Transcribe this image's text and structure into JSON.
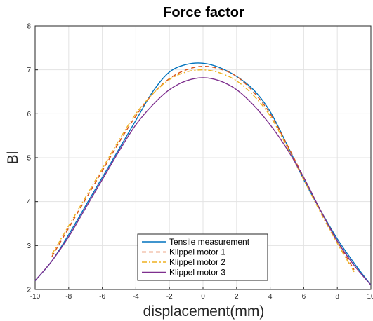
{
  "chart_data": {
    "type": "line",
    "title": "Force factor",
    "xlabel": "displacement(mm)",
    "ylabel": "Bl",
    "xlim": [
      -10,
      10
    ],
    "ylim": [
      2,
      8
    ],
    "xticks": [
      -10,
      -8,
      -6,
      -4,
      -2,
      0,
      2,
      4,
      6,
      8,
      10
    ],
    "yticks": [
      2,
      3,
      4,
      5,
      6,
      7,
      8
    ],
    "grid": true,
    "legend_position": "bottom-center",
    "series": [
      {
        "name": "Tensile measurement",
        "color": "#0072BD",
        "dash": "solid",
        "x": [
          -10,
          -9,
          -8,
          -7,
          -6,
          -5,
          -4,
          -3,
          -2,
          -1,
          0,
          1,
          2,
          3,
          4,
          5,
          6,
          7,
          8,
          9,
          10
        ],
        "y": [
          2.2,
          2.65,
          3.25,
          3.9,
          4.55,
          5.2,
          5.85,
          6.5,
          6.95,
          7.12,
          7.15,
          7.05,
          6.85,
          6.55,
          6.05,
          5.3,
          4.5,
          3.8,
          3.15,
          2.6,
          2.1
        ]
      },
      {
        "name": "Klippel motor 1",
        "color": "#D95319",
        "dash": "dashed",
        "x": [
          -9,
          -8,
          -7,
          -6,
          -5,
          -4,
          -3,
          -2,
          -1,
          0,
          1,
          2,
          3,
          4,
          5,
          6,
          7,
          8,
          9
        ],
        "y": [
          2.75,
          3.4,
          4.05,
          4.7,
          5.35,
          5.95,
          6.45,
          6.8,
          7.0,
          7.08,
          7.02,
          6.85,
          6.5,
          6.0,
          5.3,
          4.55,
          3.8,
          3.1,
          2.45
        ]
      },
      {
        "name": "Klippel motor 2",
        "color": "#EDB120",
        "dash": "dashdot",
        "x": [
          -9,
          -8,
          -7,
          -6,
          -5,
          -4,
          -3,
          -2,
          -1,
          0,
          1,
          2,
          3,
          4,
          5,
          6,
          7,
          8,
          9
        ],
        "y": [
          2.8,
          3.45,
          4.1,
          4.75,
          5.4,
          6.0,
          6.45,
          6.78,
          6.95,
          7.0,
          6.93,
          6.75,
          6.42,
          5.95,
          5.25,
          4.5,
          3.75,
          3.05,
          2.4
        ]
      },
      {
        "name": "Klippel motor 3",
        "color": "#7E2F8E",
        "dash": "solid",
        "x": [
          -10,
          -9,
          -8,
          -7,
          -6,
          -5,
          -4,
          -3,
          -2,
          -1,
          0,
          1,
          2,
          3,
          4,
          5,
          6,
          7,
          8,
          9,
          10
        ],
        "y": [
          2.2,
          2.65,
          3.2,
          3.85,
          4.5,
          5.15,
          5.75,
          6.2,
          6.55,
          6.75,
          6.82,
          6.75,
          6.55,
          6.2,
          5.75,
          5.2,
          4.55,
          3.8,
          3.1,
          2.55,
          2.1
        ]
      }
    ]
  }
}
